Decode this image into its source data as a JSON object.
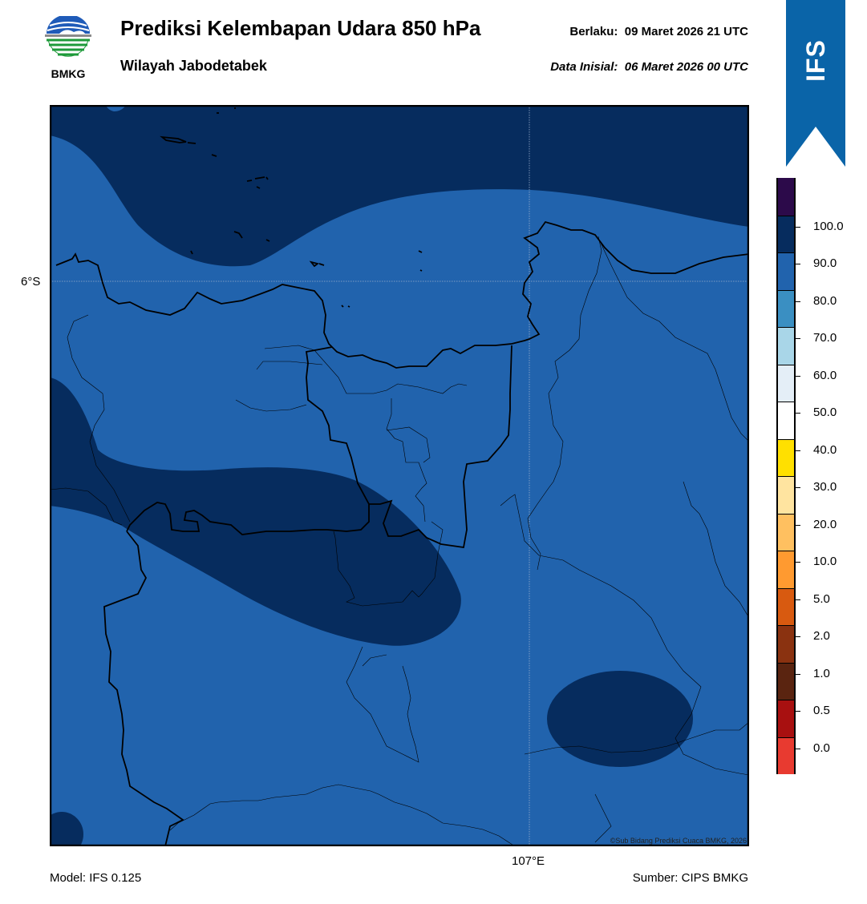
{
  "header": {
    "title": "Prediksi Kelembapan Udara 850 hPa",
    "subtitle": "Wilayah Jabodetabek",
    "valid_label": "Berlaku:",
    "valid_time": "09 Maret 2026 21 UTC",
    "init_label": "Data Inisial:",
    "init_time": "06 Maret 2026 00 UTC"
  },
  "logo": {
    "text": "BMKG",
    "icon": "bmkg-logo-icon"
  },
  "badge": {
    "text": "IFS",
    "color": "#0a64a8"
  },
  "map": {
    "lat_label": "6°S",
    "lon_label": "107°E",
    "copyright": "©Sub Bidang Prediksi Cuaca BMKG, 2026",
    "colors": {
      "band_80_90": "#2163ad",
      "band_90_100": "#062c5e"
    }
  },
  "colorbar": {
    "labels": [
      "100.0",
      "90.0",
      "80.0",
      "70.0",
      "60.0",
      "50.0",
      "40.0",
      "30.0",
      "20.0",
      "10.0",
      "5.0",
      "2.0",
      "1.0",
      "0.5",
      "0.0"
    ],
    "colors": [
      "#2c0a4a",
      "#062c5e",
      "#2163ad",
      "#3a8fc2",
      "#a9d6e8",
      "#e4eef7",
      "#ffffff",
      "#ffe000",
      "#ffe4a0",
      "#ffc060",
      "#ff9a30",
      "#d85a10",
      "#8a3210",
      "#5a2410",
      "#a81010",
      "#e83a30"
    ]
  },
  "footer": {
    "model": "Model: IFS 0.125",
    "source": "Sumber: CIPS BMKG"
  }
}
